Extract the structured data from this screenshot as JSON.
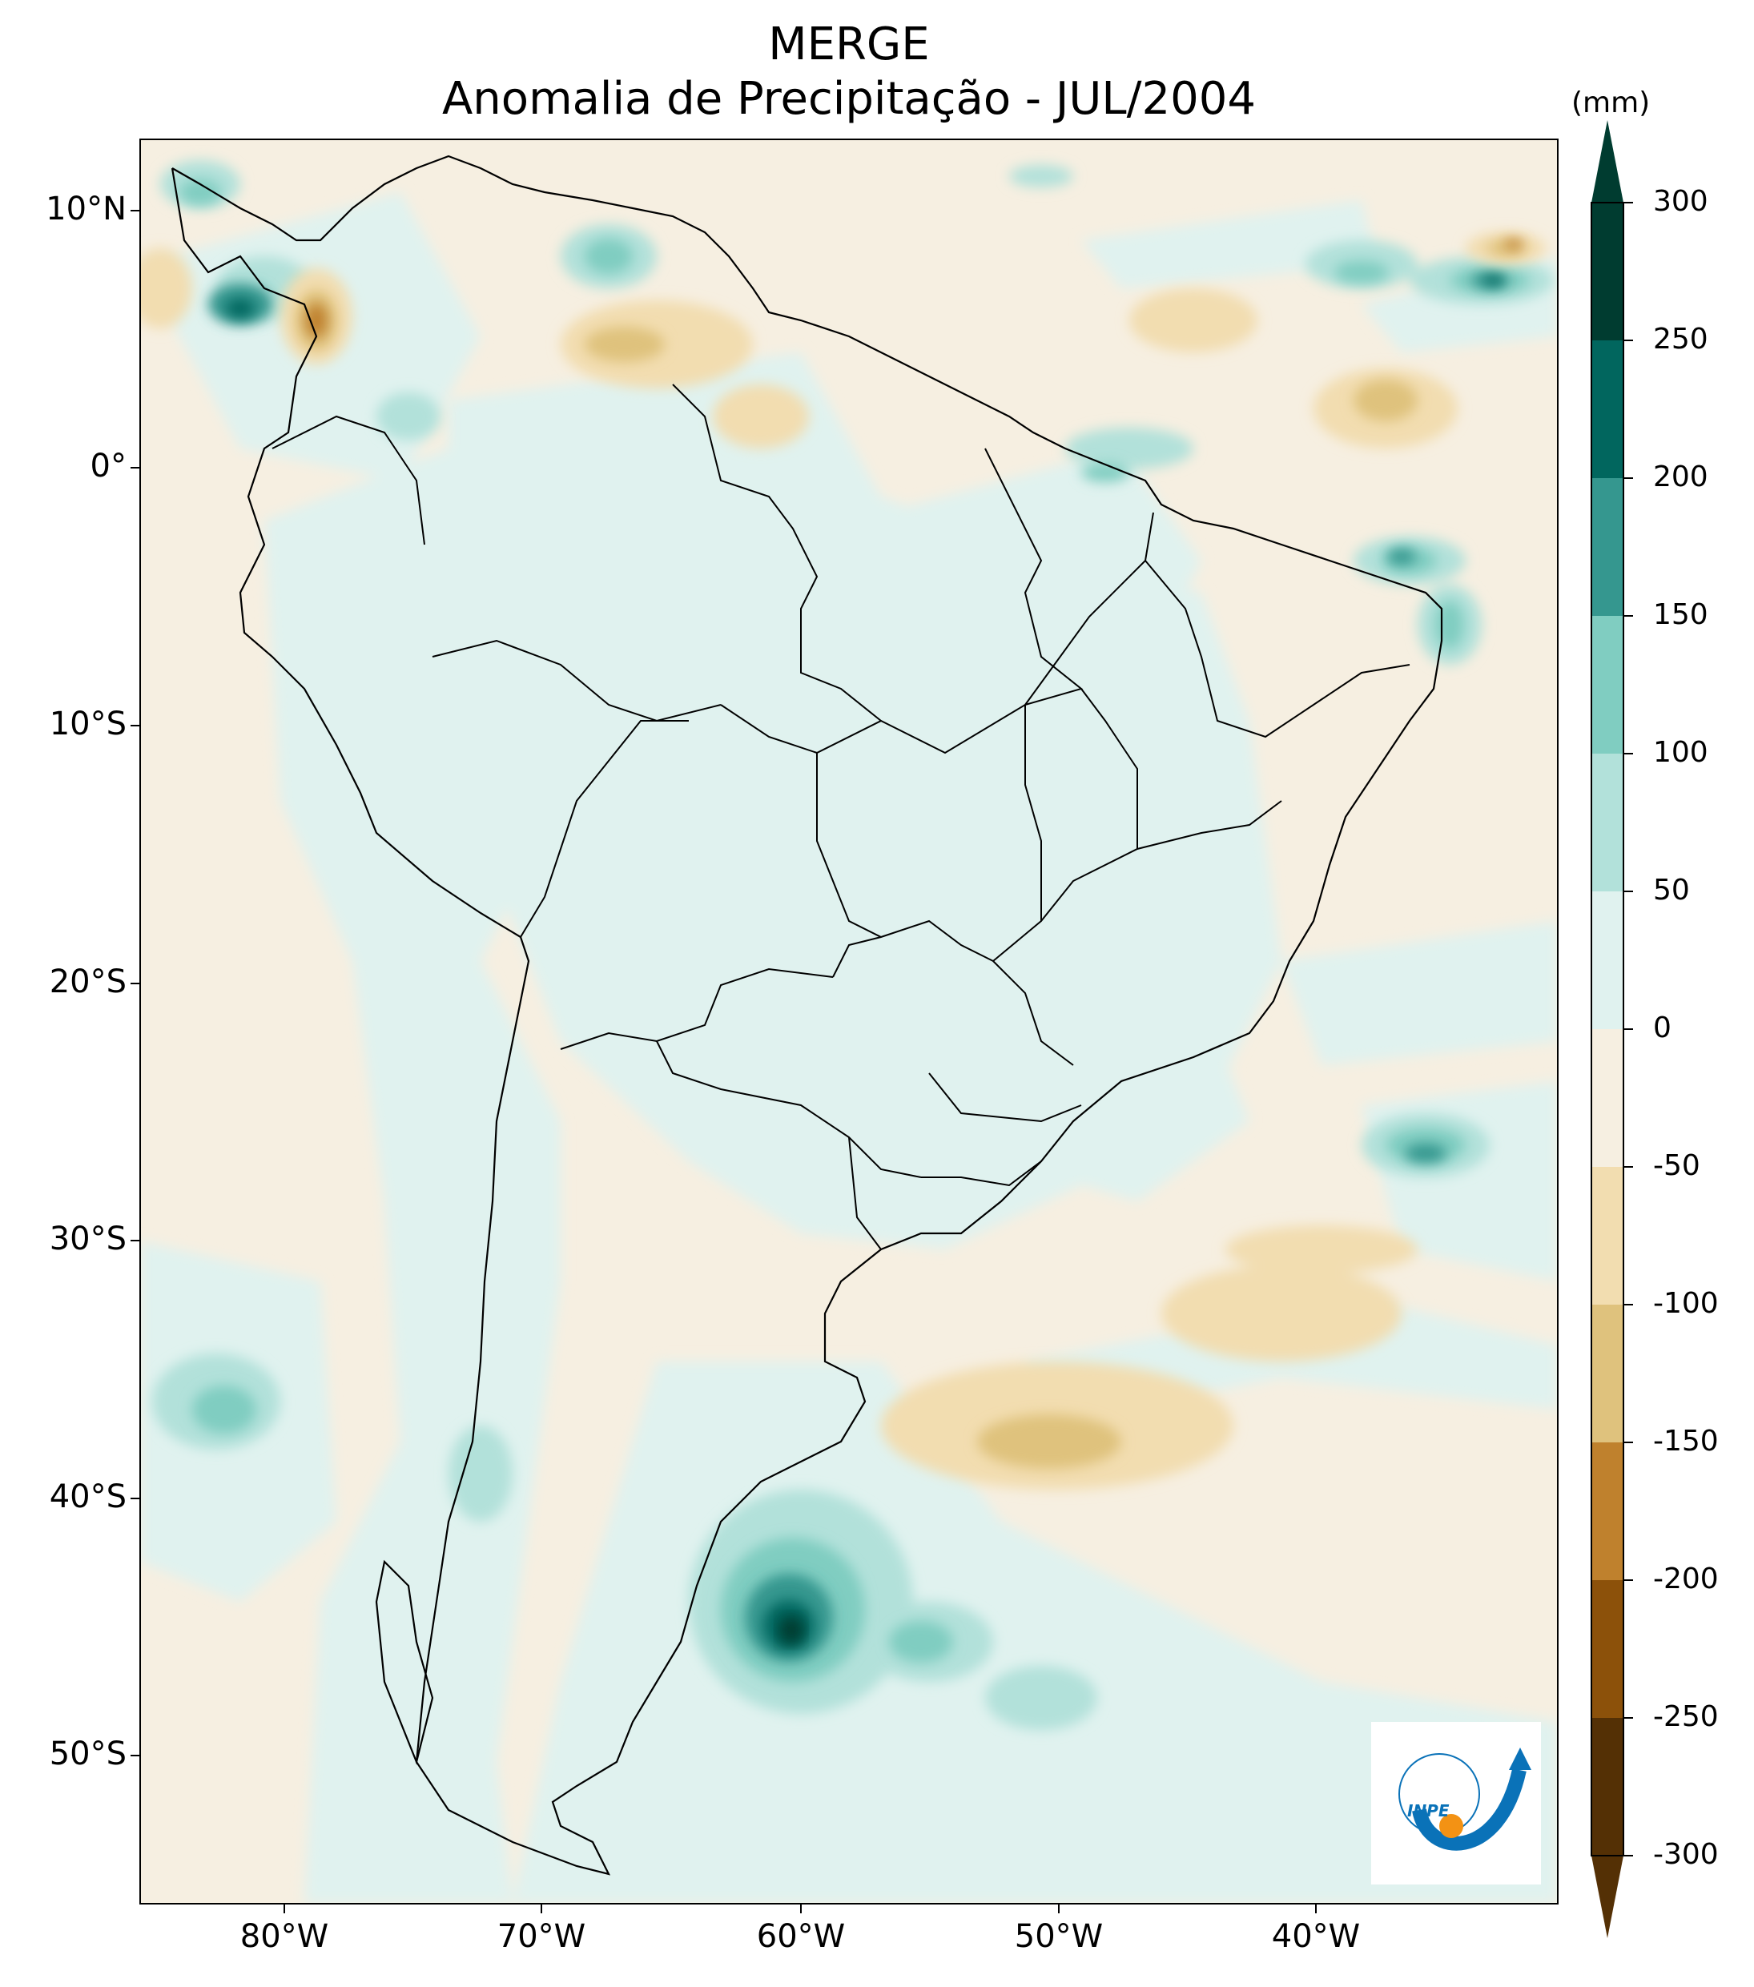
{
  "title": "MERGE",
  "subtitle": "Anomalia de Precipitação - JUL/2004",
  "units": "(mm)",
  "latitude_labels": [
    "10°N",
    "0°",
    "10°S",
    "20°S",
    "30°S",
    "40°S",
    "50°S"
  ],
  "longitude_labels": [
    "80°W",
    "70°W",
    "60°W",
    "50°W",
    "40°W"
  ],
  "colorbar": {
    "ticks": [
      "300",
      "250",
      "200",
      "150",
      "100",
      "50",
      "0",
      "-50",
      "-100",
      "-150",
      "-200",
      "-250",
      "-300"
    ],
    "colors": [
      "#003c30",
      "#01665e",
      "#35978f",
      "#80cdc1",
      "#b2e1da",
      "#e0f2ef",
      "#f6efe1",
      "#f2ddb0",
      "#dfc27d",
      "#bf812d",
      "#8c510a",
      "#543005"
    ],
    "extend": "both"
  },
  "logo": {
    "text": "INPE",
    "colors": {
      "blue": "#0a72b8",
      "orange": "#f39214"
    }
  }
}
